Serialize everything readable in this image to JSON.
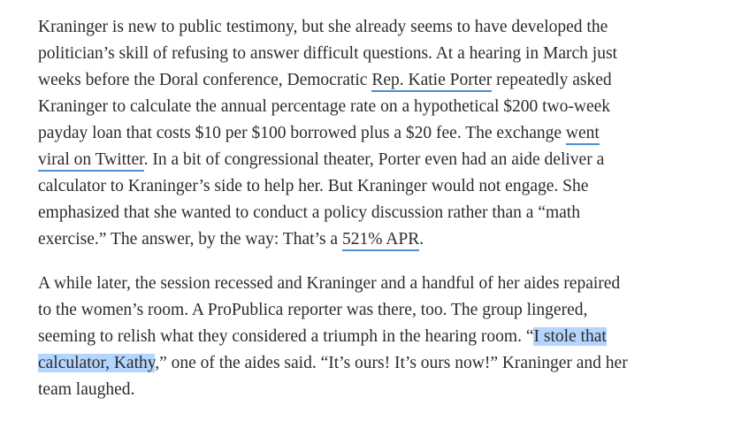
{
  "paragraphs": [
    {
      "lines": [
        [
          {
            "text": "Kraninger is new to public testimony, but she already seems to have developed the"
          }
        ],
        [
          {
            "text": "politician’s skill of refusing to answer difficult questions. At a hearing in March just"
          }
        ],
        [
          {
            "text": "weeks before the Doral conference, Democratic "
          },
          {
            "text": "Rep. Katie Porter",
            "kind": "link"
          },
          {
            "text": " repeatedly asked"
          }
        ],
        [
          {
            "text": "Kraninger to calculate the annual percentage rate on a hypothetical $200 two-week"
          }
        ],
        [
          {
            "text": "payday loan that costs $10 per $100 borrowed plus a $20 fee. The exchange "
          },
          {
            "text": "went",
            "kind": "link"
          }
        ],
        [
          {
            "text": "viral on Twitter",
            "kind": "link"
          },
          {
            "text": ". In a bit of congressional theater, Porter even had an aide deliver a"
          }
        ],
        [
          {
            "text": "calculator to Kraninger’s side to help her. But Kraninger would not engage. She"
          }
        ],
        [
          {
            "text": "emphasized that she wanted to conduct a policy discussion rather than a “math"
          }
        ],
        [
          {
            "text": "exercise.” The answer, by the way: That’s a "
          },
          {
            "text": "521% APR",
            "kind": "link"
          },
          {
            "text": "."
          }
        ]
      ]
    },
    {
      "lines": [
        [
          {
            "text": "A while later, the session recessed and Kraninger and a handful of her aides repaired"
          }
        ],
        [
          {
            "text": "to the women’s room. A ProPublica reporter was there, too. The group lingered,"
          }
        ],
        [
          {
            "text": "seeming to relish what they considered a triumph in the hearing room. “"
          },
          {
            "text": "I stole that",
            "kind": "highlight"
          }
        ],
        [
          {
            "text": "calculator, Kathy",
            "kind": "highlight"
          },
          {
            "text": ",” one of the aides said. “It’s ours! It’s ours now!” Kraninger and her"
          }
        ],
        [
          {
            "text": "team laughed."
          }
        ]
      ]
    }
  ]
}
